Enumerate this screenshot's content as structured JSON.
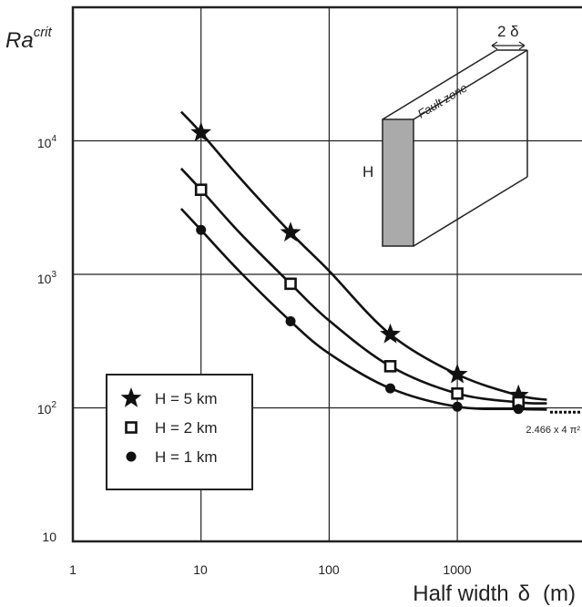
{
  "chart_data": {
    "type": "line",
    "xlabel": "Half width",
    "xlabel_symbol": "δ",
    "xlabel_unit": "(m)",
    "ylabel_base": "Ra",
    "ylabel_sup": "crit",
    "xscale": "log",
    "yscale": "log",
    "xlim": [
      1,
      10000
    ],
    "ylim": [
      10,
      100000
    ],
    "grid": true,
    "x_ticks": [
      {
        "value": 1,
        "label": "1"
      },
      {
        "value": 10,
        "label": "10"
      },
      {
        "value": 100,
        "label": "100"
      },
      {
        "value": 1000,
        "label": "1000"
      }
    ],
    "y_ticks": [
      {
        "value": 10,
        "base": "10",
        "exp": ""
      },
      {
        "value": 100,
        "base": "10",
        "exp": "2"
      },
      {
        "value": 1000,
        "base": "10",
        "exp": "3"
      },
      {
        "value": 10000,
        "base": "10",
        "exp": "4"
      }
    ],
    "series": [
      {
        "name": "H = 5 km",
        "marker": "star",
        "points": [
          [
            10,
            11500
          ],
          [
            50,
            2050
          ],
          [
            300,
            355
          ],
          [
            1000,
            178
          ],
          [
            3000,
            124
          ]
        ],
        "curve": [
          [
            7,
            16500
          ],
          [
            10,
            11500
          ],
          [
            20,
            5300
          ],
          [
            50,
            2050
          ],
          [
            100,
            1060
          ],
          [
            300,
            355
          ],
          [
            1000,
            178
          ],
          [
            3000,
            124
          ],
          [
            5000,
            115
          ]
        ]
      },
      {
        "name": "H = 2 km",
        "marker": "square",
        "points": [
          [
            10,
            4300
          ],
          [
            50,
            850
          ],
          [
            300,
            205
          ],
          [
            1000,
            128
          ],
          [
            3000,
            110
          ]
        ],
        "curve": [
          [
            7,
            6200
          ],
          [
            10,
            4300
          ],
          [
            20,
            2050
          ],
          [
            50,
            850
          ],
          [
            100,
            450
          ],
          [
            300,
            205
          ],
          [
            1000,
            128
          ],
          [
            3000,
            110
          ],
          [
            5000,
            108
          ]
        ]
      },
      {
        "name": "H = 1 km",
        "marker": "circle",
        "points": [
          [
            10,
            2150
          ],
          [
            50,
            445
          ],
          [
            300,
            140
          ],
          [
            1000,
            102
          ],
          [
            3000,
            98
          ]
        ],
        "curve": [
          [
            7,
            3100
          ],
          [
            10,
            2150
          ],
          [
            20,
            1050
          ],
          [
            50,
            445
          ],
          [
            100,
            255
          ],
          [
            300,
            140
          ],
          [
            1000,
            102
          ],
          [
            3000,
            98
          ],
          [
            5000,
            97
          ]
        ]
      }
    ],
    "asymptote": {
      "value": 97.3,
      "label": "2.466 x 4 π²"
    },
    "legend": {
      "position": "bottom-left"
    },
    "inset": {
      "wall_label": "Fault zone",
      "height_label": "H",
      "width_label": "2 δ"
    }
  }
}
